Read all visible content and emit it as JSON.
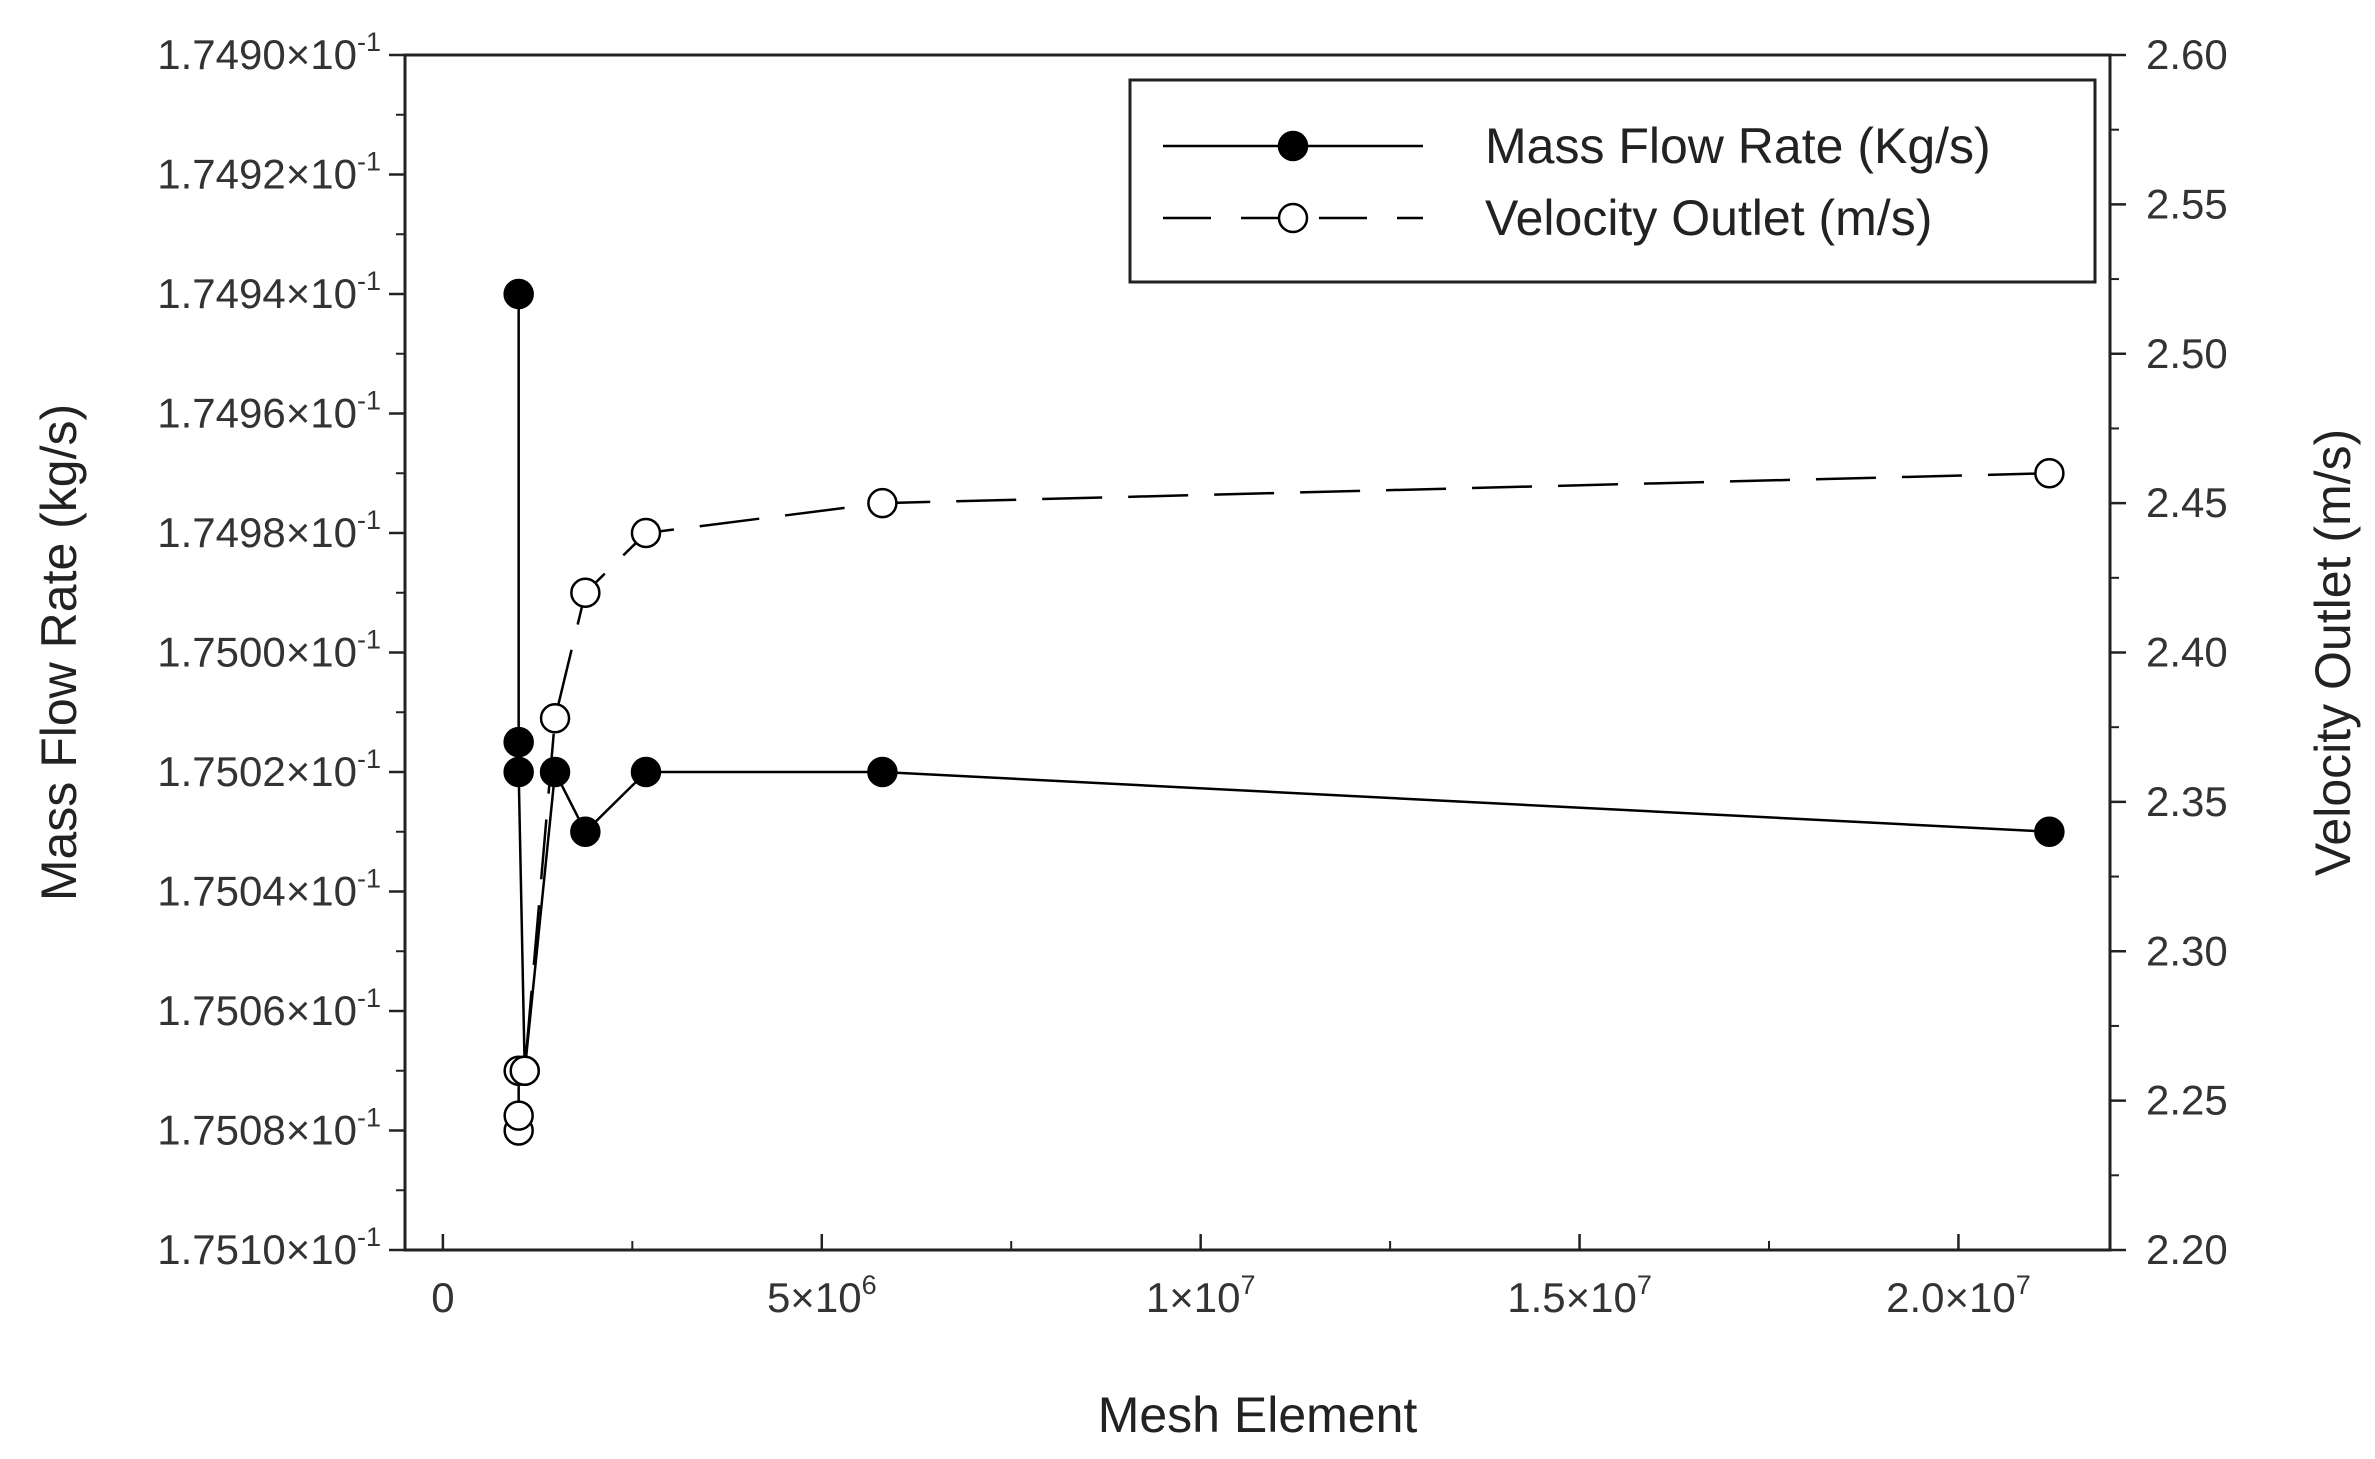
{
  "chart_data": {
    "type": "line",
    "title": "",
    "xlabel": "Mesh Element",
    "ylabel_left": "Mass Flow Rate (kg/s)",
    "ylabel_right": "Velocity Outlet (m/s)",
    "xlim": [
      -500000,
      22000000
    ],
    "ylim_left": [
      0.1751,
      0.1749
    ],
    "left_axis_inverted": true,
    "ylim_right": [
      2.2,
      2.6
    ],
    "grid": false,
    "legend_position": "top-right",
    "x_ticks": [
      {
        "value": 0,
        "base": "0",
        "exp": ""
      },
      {
        "value": 5000000,
        "base": "5×10",
        "exp": "6"
      },
      {
        "value": 10000000,
        "base": "1×10",
        "exp": "7"
      },
      {
        "value": 15000000,
        "base": "1.5×10",
        "exp": "7"
      },
      {
        "value": 20000000,
        "base": "2.0×10",
        "exp": "7"
      }
    ],
    "x_minor_ticks": [
      2500000,
      7500000,
      12500000,
      17500000
    ],
    "left_ticks": [
      {
        "value": 0.1749,
        "base": "1.7490×10",
        "exp": "-1"
      },
      {
        "value": 0.17492,
        "base": "1.7492×10",
        "exp": "-1"
      },
      {
        "value": 0.17494,
        "base": "1.7494×10",
        "exp": "-1"
      },
      {
        "value": 0.17496,
        "base": "1.7496×10",
        "exp": "-1"
      },
      {
        "value": 0.17498,
        "base": "1.7498×10",
        "exp": "-1"
      },
      {
        "value": 0.175,
        "base": "1.7500×10",
        "exp": "-1"
      },
      {
        "value": 0.17502,
        "base": "1.7502×10",
        "exp": "-1"
      },
      {
        "value": 0.17504,
        "base": "1.7504×10",
        "exp": "-1"
      },
      {
        "value": 0.17506,
        "base": "1.7506×10",
        "exp": "-1"
      },
      {
        "value": 0.17508,
        "base": "1.7508×10",
        "exp": "-1"
      },
      {
        "value": 0.1751,
        "base": "1.7510×10",
        "exp": "-1"
      }
    ],
    "right_ticks": [
      {
        "value": 2.2,
        "label": "2.20"
      },
      {
        "value": 2.25,
        "label": "2.25"
      },
      {
        "value": 2.3,
        "label": "2.30"
      },
      {
        "value": 2.35,
        "label": "2.35"
      },
      {
        "value": 2.4,
        "label": "2.40"
      },
      {
        "value": 2.45,
        "label": "2.45"
      },
      {
        "value": 2.5,
        "label": "2.50"
      },
      {
        "value": 2.55,
        "label": "2.55"
      },
      {
        "value": 2.6,
        "label": "2.60"
      }
    ],
    "series": [
      {
        "name": "Mass Flow Rate (Kg/s)",
        "axis": "left",
        "style": "solid",
        "marker": "filled-circle",
        "color": "#000000",
        "points": [
          {
            "x": 1000000,
            "y": 0.17494
          },
          {
            "x": 1000000,
            "y": 0.175015
          },
          {
            "x": 1000000,
            "y": 0.17502
          },
          {
            "x": 1080000,
            "y": 0.17507
          },
          {
            "x": 1480000,
            "y": 0.17502
          },
          {
            "x": 1880000,
            "y": 0.17503
          },
          {
            "x": 2680000,
            "y": 0.17502
          },
          {
            "x": 5800000,
            "y": 0.17502
          },
          {
            "x": 21200000,
            "y": 0.17503
          }
        ]
      },
      {
        "name": "Velocity Outlet (m/s)",
        "axis": "right",
        "style": "dashed",
        "marker": "open-circle",
        "color": "#000000",
        "points": [
          {
            "x": 1000000,
            "y": 2.24
          },
          {
            "x": 1000000,
            "y": 2.245
          },
          {
            "x": 1000000,
            "y": 2.26
          },
          {
            "x": 1080000,
            "y": 2.26
          },
          {
            "x": 1480000,
            "y": 2.378
          },
          {
            "x": 1880000,
            "y": 2.42
          },
          {
            "x": 2680000,
            "y": 2.44
          },
          {
            "x": 5800000,
            "y": 2.45
          },
          {
            "x": 21200000,
            "y": 2.46
          }
        ]
      }
    ]
  }
}
